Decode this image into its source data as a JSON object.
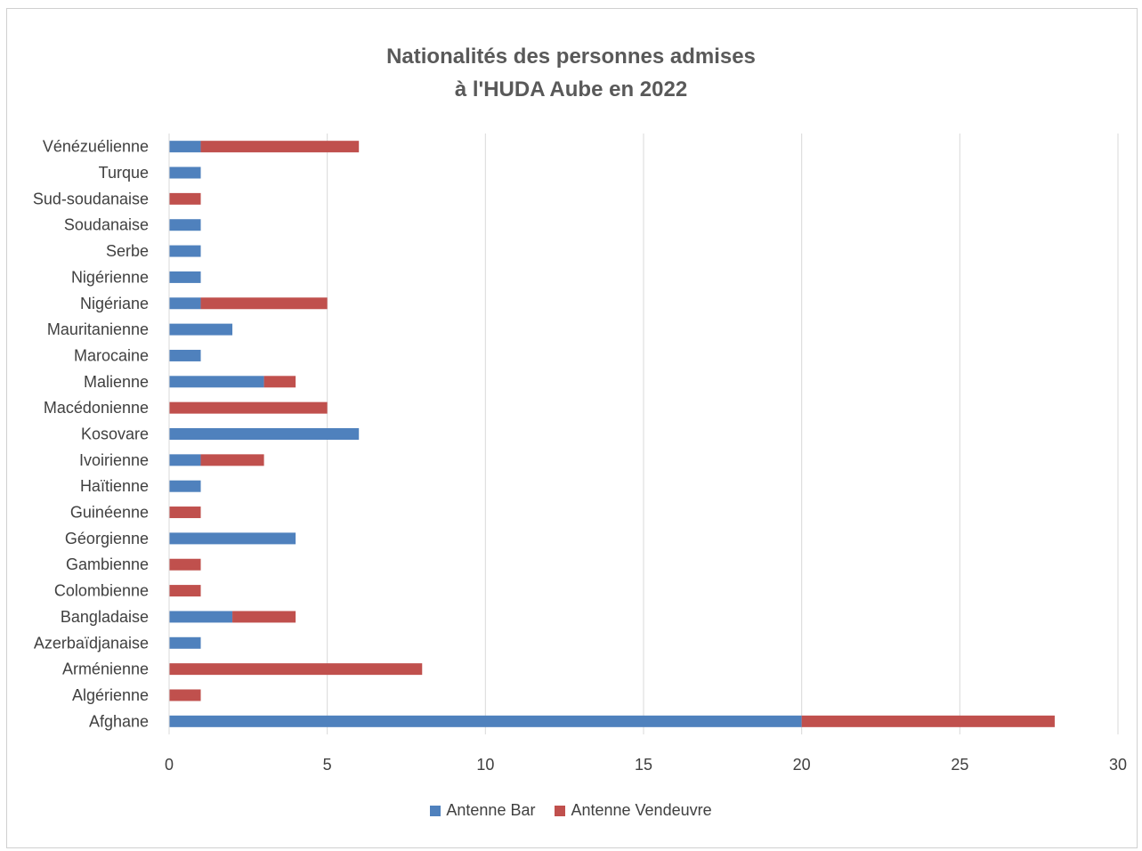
{
  "chart_data": {
    "type": "bar",
    "orientation": "horizontal",
    "stacked": true,
    "title": [
      "Nationalités des personnes admises",
      "à l'HUDA Aube en 2022"
    ],
    "categories": [
      "Afghane",
      "Algérienne",
      "Arménienne",
      "Azerbaïdjanaise",
      "Bangladaise",
      "Colombienne",
      "Gambienne",
      "Géorgienne",
      "Guinéenne",
      "Haïtienne",
      "Ivoirienne",
      "Kosovare",
      "Macédonienne",
      "Malienne",
      "Marocaine",
      "Mauritanienne",
      "Nigériane",
      "Nigérienne",
      "Serbe",
      "Soudanaise",
      "Sud-soudanaise",
      "Turque",
      "Vénézuélienne"
    ],
    "series": [
      {
        "name": "Antenne Bar",
        "color": "#4f81bd",
        "values": [
          20,
          0,
          0,
          1,
          2,
          0,
          0,
          4,
          0,
          1,
          1,
          6,
          0,
          3,
          1,
          2,
          1,
          1,
          1,
          1,
          0,
          1,
          1
        ]
      },
      {
        "name": "Antenne Vendeuvre",
        "color": "#c0504d",
        "values": [
          8,
          1,
          8,
          0,
          2,
          1,
          1,
          0,
          1,
          0,
          2,
          0,
          5,
          1,
          0,
          0,
          4,
          0,
          0,
          0,
          1,
          0,
          5
        ]
      }
    ],
    "xlim": [
      0,
      30
    ],
    "xticks": [
      "0",
      "5",
      "10",
      "15",
      "20",
      "25",
      "30"
    ],
    "grid": "vertical",
    "legend_position": "bottom"
  }
}
